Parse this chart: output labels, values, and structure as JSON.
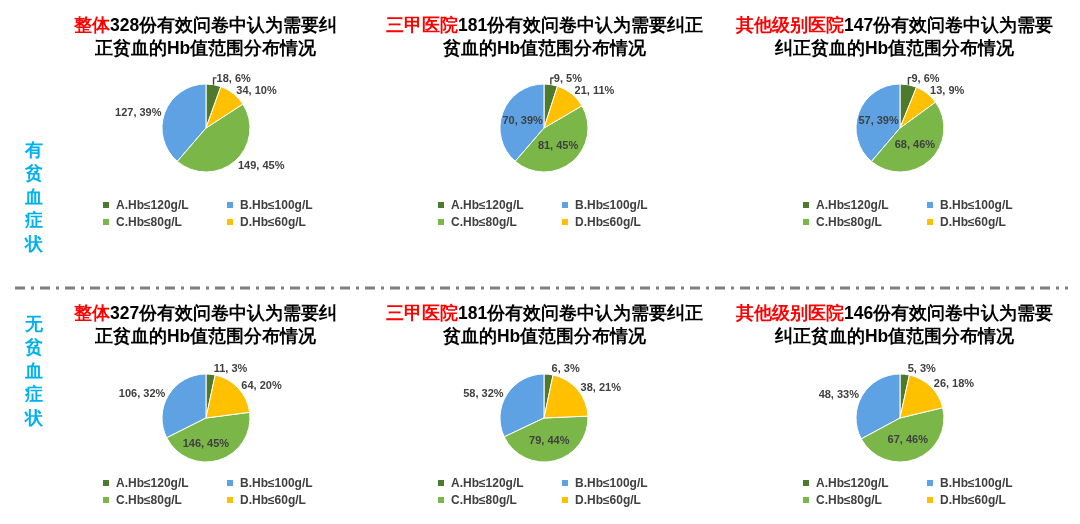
{
  "chart_data": [
    {
      "type": "pie",
      "title": "整体328份有效问卷中认为需要纠正贫血的Hb值范围分布情况",
      "categories": [
        "A.Hb≤120g/L",
        "B.Hb≤100g/L",
        "C.Hb≤80g/L",
        "D.Hb≤60g/L"
      ],
      "values": [
        18,
        127,
        149,
        34
      ],
      "colors": [
        "#4e7a2e",
        "#5ea2e4",
        "#7ab648",
        "#ffc000"
      ],
      "value_labels": [
        "18, 6%",
        "127, 39%",
        "149, 45%",
        "34, 10%"
      ],
      "legend": "bottom",
      "annotations": [
        "有贫血症状"
      ]
    },
    {
      "type": "pie",
      "title": "三甲医院181份有效问卷中认为需要纠正贫血的Hb值范围分布情况",
      "categories": [
        "A.Hb≤120g/L",
        "B.Hb≤100g/L",
        "C.Hb≤80g/L",
        "D.Hb≤60g/L"
      ],
      "values": [
        9,
        70,
        81,
        21
      ],
      "colors": [
        "#4e7a2e",
        "#5ea2e4",
        "#7ab648",
        "#ffc000"
      ],
      "value_labels": [
        "9, 5%",
        "70, 39%",
        "81, 45%",
        "21, 11%"
      ],
      "legend": "bottom"
    },
    {
      "type": "pie",
      "title": "其他级别医院147份有效问卷中认为需要纠正贫血的Hb值范围分布情况",
      "categories": [
        "A.Hb≤120g/L",
        "B.Hb≤100g/L",
        "C.Hb≤80g/L",
        "D.Hb≤60g/L"
      ],
      "values": [
        9,
        57,
        68,
        13
      ],
      "colors": [
        "#4e7a2e",
        "#5ea2e4",
        "#7ab648",
        "#ffc000"
      ],
      "value_labels": [
        "9, 6%",
        "57, 39%",
        "68, 46%",
        "13, 9%"
      ],
      "legend": "bottom"
    },
    {
      "type": "pie",
      "title": "整体327份有效问卷中认为需要纠正贫血的Hb值范围分布情况",
      "categories": [
        "A.Hb≤120g/L",
        "B.Hb≤100g/L",
        "C.Hb≤80g/L",
        "D.Hb≤60g/L"
      ],
      "values": [
        11,
        106,
        146,
        64
      ],
      "colors": [
        "#4e7a2e",
        "#5ea2e4",
        "#7ab648",
        "#ffc000"
      ],
      "value_labels": [
        "11, 3%",
        "106, 32%",
        "146, 45%",
        "64, 20%"
      ],
      "legend": "bottom",
      "annotations": [
        "无贫血症状"
      ]
    },
    {
      "type": "pie",
      "title": "三甲医院181份有效问卷中认为需要纠正贫血的Hb值范围分布情况",
      "categories": [
        "A.Hb≤120g/L",
        "B.Hb≤100g/L",
        "C.Hb≤80g/L",
        "D.Hb≤60g/L"
      ],
      "values": [
        6,
        58,
        79,
        38
      ],
      "colors": [
        "#4e7a2e",
        "#5ea2e4",
        "#7ab648",
        "#ffc000"
      ],
      "value_labels": [
        "6, 3%",
        "58, 32%",
        "79, 44%",
        "38, 21%"
      ],
      "legend": "bottom"
    },
    {
      "type": "pie",
      "title": "其他级别医院146份有效问卷中认为需要纠正贫血的Hb值范围分布情况",
      "categories": [
        "A.Hb≤120g/L",
        "B.Hb≤100g/L",
        "C.Hb≤80g/L",
        "D.Hb≤60g/L"
      ],
      "values": [
        5,
        48,
        67,
        26
      ],
      "colors": [
        "#4e7a2e",
        "#5ea2e4",
        "#7ab648",
        "#ffc000"
      ],
      "value_labels": [
        "5, 3%",
        "48, 33%",
        "67, 46%",
        "26, 18%"
      ],
      "legend": "bottom"
    }
  ]
}
